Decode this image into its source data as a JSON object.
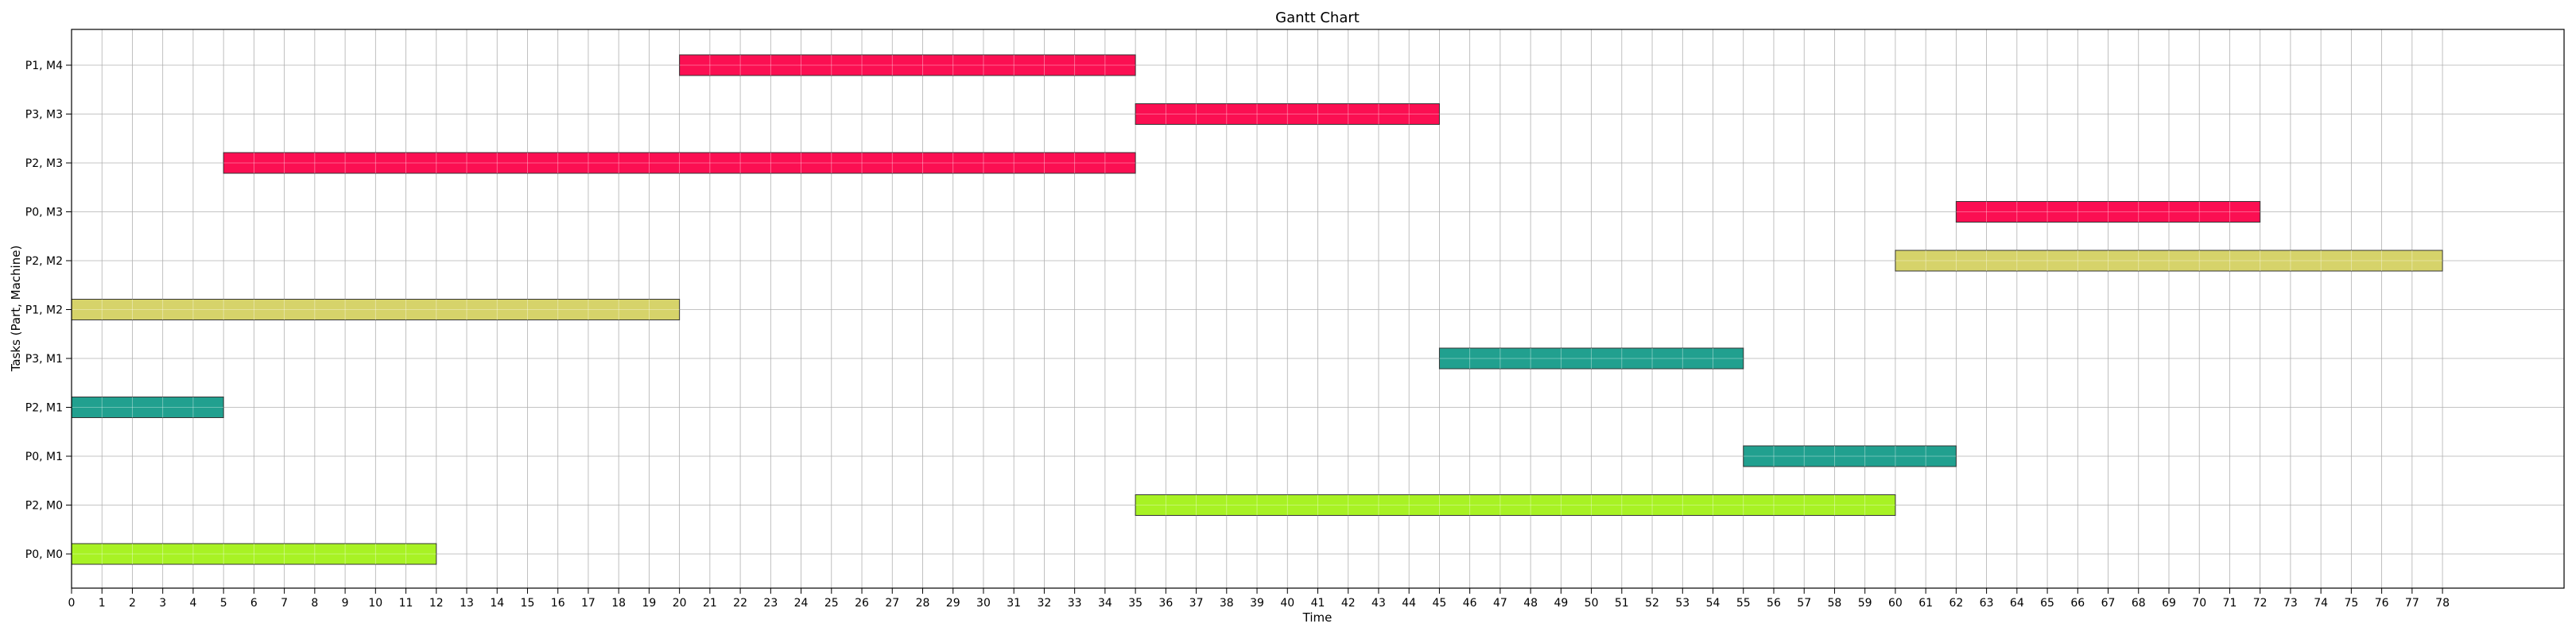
{
  "chart_data": {
    "type": "gantt",
    "title": "Gantt Chart",
    "xlabel": "Time",
    "ylabel": "Tasks (Part, Machine)",
    "xlim": [
      0,
      82
    ],
    "xticks": [
      0,
      1,
      2,
      3,
      4,
      5,
      6,
      7,
      8,
      9,
      10,
      11,
      12,
      13,
      14,
      15,
      16,
      17,
      18,
      19,
      20,
      21,
      22,
      23,
      24,
      25,
      26,
      27,
      28,
      29,
      30,
      31,
      32,
      33,
      34,
      35,
      36,
      37,
      38,
      39,
      40,
      41,
      42,
      43,
      44,
      45,
      46,
      47,
      48,
      49,
      50,
      51,
      52,
      53,
      54,
      55,
      56,
      57,
      58,
      59,
      60,
      61,
      62,
      63,
      64,
      65,
      66,
      67,
      68,
      69,
      70,
      71,
      72,
      73,
      74,
      75,
      76,
      77,
      78
    ],
    "grid": true,
    "categories": [
      "P0, M0",
      "P2, M0",
      "P0, M1",
      "P2, M1",
      "P3, M1",
      "P1, M2",
      "P2, M2",
      "P0, M3",
      "P2, M3",
      "P3, M3",
      "P1, M4"
    ],
    "machine_colors": {
      "M0": "#a8f224",
      "M1": "#21a08f",
      "M2": "#d6d36a",
      "M3": "#fb0f52",
      "M4": "#fb0f52"
    },
    "tasks": [
      {
        "task": "P0, M0",
        "start": 0,
        "end": 12,
        "machine": "M0"
      },
      {
        "task": "P2, M0",
        "start": 35,
        "end": 60,
        "machine": "M0"
      },
      {
        "task": "P0, M1",
        "start": 55,
        "end": 62,
        "machine": "M1"
      },
      {
        "task": "P2, M1",
        "start": 0,
        "end": 5,
        "machine": "M1"
      },
      {
        "task": "P3, M1",
        "start": 45,
        "end": 55,
        "machine": "M1"
      },
      {
        "task": "P1, M2",
        "start": 0,
        "end": 20,
        "machine": "M2"
      },
      {
        "task": "P2, M2",
        "start": 60,
        "end": 78,
        "machine": "M2"
      },
      {
        "task": "P0, M3",
        "start": 62,
        "end": 72,
        "machine": "M3"
      },
      {
        "task": "P2, M3",
        "start": 5,
        "end": 35,
        "machine": "M3"
      },
      {
        "task": "P3, M3",
        "start": 35,
        "end": 45,
        "machine": "M3"
      },
      {
        "task": "P1, M4",
        "start": 20,
        "end": 35,
        "machine": "M4"
      }
    ]
  }
}
